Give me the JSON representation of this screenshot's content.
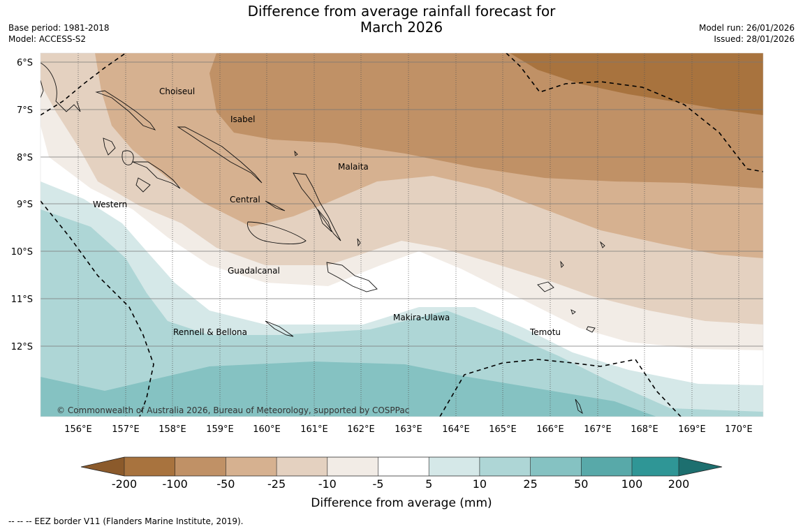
{
  "title_line1": "Difference from average rainfall forecast for",
  "title_line2": "March 2026",
  "meta_left": {
    "base_period": "Base period: 1981-2018",
    "model": "Model: ACCESS-S2"
  },
  "meta_right": {
    "model_run": "Model run: 26/01/2026",
    "issued": "Issued: 28/01/2026"
  },
  "lat_labels": [
    "6°S",
    "7°S",
    "8°S",
    "9°S",
    "10°S",
    "11°S",
    "12°S"
  ],
  "lon_labels": [
    "156°E",
    "157°E",
    "158°E",
    "159°E",
    "160°E",
    "161°E",
    "162°E",
    "163°E",
    "164°E",
    "165°E",
    "166°E",
    "167°E",
    "168°E",
    "169°E",
    "170°E"
  ],
  "places": [
    "Choiseul",
    "Isabel",
    "Malaita",
    "Western",
    "Central",
    "Guadalcanal",
    "Makira-Ulawa",
    "Rennell & Bellona",
    "Temotu"
  ],
  "copyright": "© Commonwealth of Australia 2026, Bureau of Meteorology, supported by COSPPac",
  "colorbar": {
    "ticks": [
      "-200",
      "-100",
      "-50",
      "-25",
      "-10",
      "-5",
      "5",
      "10",
      "25",
      "50",
      "100",
      "200"
    ],
    "colors": [
      "#8b5a2b",
      "#a8733e",
      "#c09166",
      "#d6b190",
      "#e4d1c0",
      "#f2ece6",
      "#ffffff",
      "#d5e8e8",
      "#aed6d6",
      "#85c2c2",
      "#58a9a9",
      "#2f9696",
      "#1d6f6f"
    ],
    "label": "Difference from average (mm)"
  },
  "footer": "--  --  -- EEZ border V11 (Flanders Marine Institute, 2019)."
}
